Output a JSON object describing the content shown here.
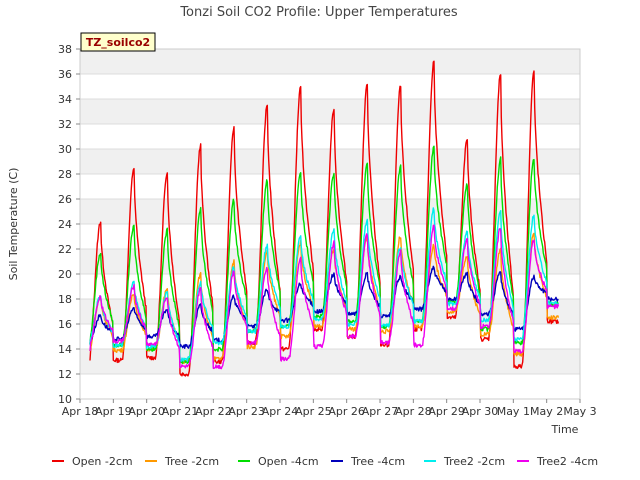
{
  "chart_data": {
    "type": "line",
    "title": "Tonzi Soil CO2 Profile: Upper Temperatures",
    "xlabel": "Time",
    "ylabel": "Soil Temperature (C)",
    "tag": "TZ_soilco2",
    "xlim": [
      0,
      15
    ],
    "ylim": [
      10,
      38
    ],
    "x_ticks": [
      {
        "v": 0,
        "label": "Apr 18"
      },
      {
        "v": 1,
        "label": "Apr 19"
      },
      {
        "v": 2,
        "label": "Apr 20"
      },
      {
        "v": 3,
        "label": "Apr 21"
      },
      {
        "v": 4,
        "label": "Apr 22"
      },
      {
        "v": 5,
        "label": "Apr 23"
      },
      {
        "v": 6,
        "label": "Apr 24"
      },
      {
        "v": 7,
        "label": "Apr 25"
      },
      {
        "v": 8,
        "label": "Apr 26"
      },
      {
        "v": 9,
        "label": "Apr 27"
      },
      {
        "v": 10,
        "label": "Apr 28"
      },
      {
        "v": 11,
        "label": "Apr 29"
      },
      {
        "v": 12,
        "label": "Apr 30"
      },
      {
        "v": 13,
        "label": "May 1"
      },
      {
        "v": 14,
        "label": "May 2"
      },
      {
        "v": 15,
        "label": "May 3"
      }
    ],
    "y_ticks": [
      10,
      12,
      14,
      16,
      18,
      20,
      22,
      24,
      26,
      28,
      30,
      32,
      34,
      36,
      38
    ],
    "grid": true,
    "legend_position": "bottom",
    "series": [
      {
        "name": "Open -2cm",
        "color": "#ee0000",
        "start": 15.0,
        "end": 16.2,
        "days": [
          [
            13.0,
            24.2
          ],
          [
            13.1,
            28.5
          ],
          [
            13.3,
            28.2
          ],
          [
            12.0,
            30.3
          ],
          [
            13.0,
            31.7
          ],
          [
            14.5,
            33.5
          ],
          [
            14.0,
            34.9
          ],
          [
            15.6,
            33.2
          ],
          [
            15.0,
            35.2
          ],
          [
            14.3,
            35.0
          ],
          [
            15.6,
            37.0
          ],
          [
            16.5,
            30.8
          ],
          [
            14.8,
            36.0
          ],
          [
            12.6,
            36.2
          ]
        ]
      },
      {
        "name": "Tree -2cm",
        "color": "#ff9900",
        "start": 15.0,
        "end": 16.5,
        "days": [
          [
            13.8,
            18.2
          ],
          [
            13.9,
            18.5
          ],
          [
            14.0,
            18.8
          ],
          [
            13.0,
            20.0
          ],
          [
            13.2,
            21.0
          ],
          [
            14.2,
            21.8
          ],
          [
            15.0,
            22.5
          ],
          [
            15.8,
            22.0
          ],
          [
            15.6,
            23.0
          ],
          [
            15.4,
            23.0
          ],
          [
            15.8,
            22.3
          ],
          [
            17.0,
            21.5
          ],
          [
            15.2,
            22.0
          ],
          [
            13.6,
            23.3
          ]
        ]
      },
      {
        "name": "Open -4cm",
        "color": "#00dd00",
        "start": 16.2,
        "end": 17.6,
        "days": [
          [
            14.4,
            21.7
          ],
          [
            14.3,
            23.8
          ],
          [
            14.0,
            23.5
          ],
          [
            13.0,
            25.2
          ],
          [
            14.0,
            25.9
          ],
          [
            15.4,
            27.5
          ],
          [
            15.8,
            28.2
          ],
          [
            16.6,
            28.0
          ],
          [
            16.2,
            28.8
          ],
          [
            15.8,
            28.6
          ],
          [
            16.2,
            30.1
          ],
          [
            17.8,
            27.2
          ],
          [
            15.6,
            29.2
          ],
          [
            14.5,
            29.3
          ]
        ]
      },
      {
        "name": "Tree -4cm",
        "color": "#0000bb",
        "start": 15.0,
        "end": 18.0,
        "days": [
          [
            14.5,
            16.7
          ],
          [
            14.8,
            17.3
          ],
          [
            15.0,
            17.2
          ],
          [
            14.2,
            17.5
          ],
          [
            14.7,
            18.2
          ],
          [
            15.8,
            18.7
          ],
          [
            16.3,
            19.2
          ],
          [
            17.0,
            20.0
          ],
          [
            16.8,
            20.0
          ],
          [
            16.6,
            19.8
          ],
          [
            17.2,
            20.5
          ],
          [
            18.0,
            20.0
          ],
          [
            16.8,
            20.2
          ],
          [
            15.6,
            19.8
          ]
        ]
      },
      {
        "name": "Tree2 -2cm",
        "color": "#00eeee",
        "start": 14.5,
        "end": 17.7,
        "days": [
          [
            14.4,
            18.3
          ],
          [
            14.3,
            19.5
          ],
          [
            14.2,
            18.5
          ],
          [
            13.2,
            19.3
          ],
          [
            14.5,
            20.5
          ],
          [
            15.4,
            22.3
          ],
          [
            15.8,
            23.0
          ],
          [
            16.4,
            23.5
          ],
          [
            16.0,
            24.2
          ],
          [
            15.9,
            22.2
          ],
          [
            16.2,
            25.2
          ],
          [
            17.6,
            23.3
          ],
          [
            16.3,
            25.0
          ],
          [
            14.8,
            24.7
          ]
        ]
      },
      {
        "name": "Tree2 -4cm",
        "color": "#ee00ee",
        "start": 14.7,
        "end": 17.4,
        "days": [
          [
            14.0,
            18.2
          ],
          [
            14.6,
            19.0
          ],
          [
            14.4,
            18.2
          ],
          [
            12.6,
            18.8
          ],
          [
            12.6,
            20.2
          ],
          [
            14.5,
            20.5
          ],
          [
            13.2,
            21.2
          ],
          [
            14.2,
            22.5
          ],
          [
            15.0,
            23.2
          ],
          [
            14.5,
            21.8
          ],
          [
            14.3,
            23.8
          ],
          [
            17.2,
            22.8
          ],
          [
            15.8,
            23.7
          ],
          [
            13.8,
            22.8
          ]
        ]
      }
    ]
  }
}
